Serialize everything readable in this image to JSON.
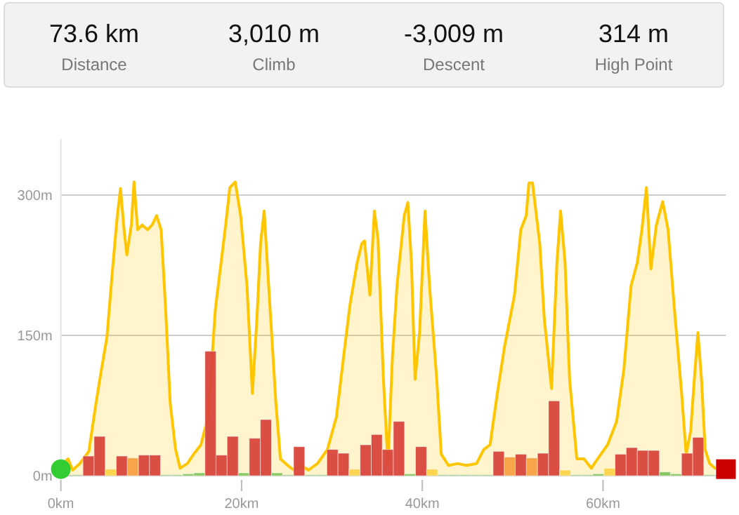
{
  "chart_data": [
    {
      "type": "other",
      "annotations": [
        "73.6 km",
        "Distance",
        "3,010 m",
        "Climb",
        "-3,009 m",
        "Descent",
        "314 m",
        "High Point"
      ]
    },
    {
      "type": "area",
      "xlim": [
        0,
        73.6
      ],
      "ylim": [
        0,
        360
      ],
      "xticks": [
        {
          "value": 0,
          "label": "0km"
        },
        {
          "value": 20,
          "label": "20km"
        },
        {
          "value": 40,
          "label": "40km"
        },
        {
          "value": 60,
          "label": "60km"
        }
      ],
      "yticks": [
        {
          "value": 0,
          "label": "0m"
        },
        {
          "value": 150,
          "label": "150m"
        },
        {
          "value": 300,
          "label": "300m"
        }
      ],
      "grid": "y",
      "series": [
        {
          "type": "area",
          "color": "#ffc600",
          "x": [
            0,
            0.8,
            1.3,
            2.1,
            3.1,
            3.9,
            4.4,
            5.1,
            5.7,
            6.2,
            6.6,
            7.0,
            7.3,
            7.8,
            8.1,
            8.5,
            9.0,
            9.6,
            10.1,
            10.6,
            11.1,
            11.6,
            12.1,
            12.7,
            13.2,
            14.0,
            14.7,
            15.5,
            16.3,
            17.1,
            17.8,
            18.3,
            18.7,
            19.3,
            19.9,
            20.6,
            21.2,
            21.7,
            22.1,
            22.5,
            23.0,
            23.8,
            24.3,
            25.1,
            25.8,
            26.6,
            27.4,
            28.4,
            29.5,
            30.5,
            31.3,
            32.0,
            32.8,
            33.3,
            33.6,
            34.2,
            34.7,
            35.1,
            35.7,
            36.2,
            36.7,
            37.2,
            38.0,
            38.4,
            38.8,
            39.2,
            39.7,
            40.3,
            40.8,
            41.6,
            42.1,
            42.9,
            43.9,
            44.9,
            46.0,
            46.8,
            47.5,
            48.3,
            49.1,
            50.2,
            50.9,
            51.5,
            51.8,
            52.2,
            53.0,
            53.5,
            54.3,
            54.9,
            55.3,
            55.8,
            56.3,
            57.1,
            57.9,
            58.7,
            59.4,
            60.5,
            61.5,
            62.3,
            63.1,
            63.8,
            64.3,
            64.8,
            65.3,
            65.9,
            66.6,
            67.2,
            67.9,
            68.7,
            69.2,
            69.7,
            70.1,
            70.5,
            70.9,
            71.3,
            71.8,
            72.4
          ],
          "values": [
            10,
            18,
            6,
            13,
            26,
            78,
            108,
            148,
            218,
            273,
            307,
            263,
            236,
            268,
            314,
            263,
            268,
            263,
            268,
            278,
            263,
            178,
            78,
            28,
            8,
            13,
            23,
            33,
            63,
            178,
            233,
            273,
            308,
            314,
            278,
            203,
            88,
            168,
            248,
            283,
            203,
            78,
            18,
            11,
            6,
            11,
            6,
            13,
            28,
            63,
            128,
            183,
            228,
            248,
            251,
            193,
            283,
            253,
            103,
            13,
            128,
            203,
            278,
            292,
            228,
            103,
            153,
            283,
            203,
            103,
            23,
            11,
            13,
            11,
            13,
            28,
            33,
            88,
            138,
            193,
            263,
            278,
            313,
            313,
            248,
            168,
            93,
            228,
            283,
            228,
            103,
            18,
            18,
            8,
            18,
            33,
            58,
            113,
            203,
            228,
            263,
            308,
            221,
            268,
            293,
            263,
            178,
            88,
            23,
            48,
            103,
            153,
            103,
            28,
            13,
            8
          ]
        },
        {
          "type": "histogram",
          "bins": [
            1.23,
            2.45,
            3.68,
            4.91,
            6.13,
            7.36,
            8.59,
            9.81,
            11.04,
            12.27,
            13.49,
            14.72,
            15.95,
            17.17,
            18.4,
            19.63,
            20.85,
            22.08,
            23.31,
            24.53,
            25.76,
            26.99,
            28.21,
            29.44,
            30.67,
            31.89,
            33.12,
            34.35,
            35.57,
            36.8,
            38.03,
            39.25,
            40.48,
            41.71,
            42.93,
            44.16,
            45.39,
            46.61,
            47.84,
            49.07,
            50.29,
            51.52,
            52.75,
            53.97,
            55.2,
            56.43,
            57.65,
            58.88,
            60.11,
            61.33,
            62.56,
            63.79,
            65.01,
            66.24,
            67.47,
            68.69,
            69.92,
            71.15,
            72.37
          ],
          "values": [
            1,
            21,
            42,
            7,
            21,
            19,
            22,
            22,
            1,
            1,
            2,
            3,
            133,
            22,
            42,
            3,
            40,
            60,
            3,
            1,
            31,
            1,
            1,
            28,
            24,
            7,
            33,
            44,
            28,
            58,
            2,
            31,
            7,
            1,
            1,
            1,
            1,
            1,
            26,
            20,
            23,
            19,
            24,
            80,
            6,
            1,
            1,
            2,
            8,
            23,
            30,
            27,
            27,
            4,
            2,
            24,
            41,
            1
          ],
          "colors": [
            "#80c45a",
            "#d9453b",
            "#d9453b",
            "#fdd34a",
            "#d9453b",
            "#f7a040",
            "#d9453b",
            "#d9453b",
            "#80c45a",
            "#80c45a",
            "#80c45a",
            "#80c45a",
            "#d9453b",
            "#d9453b",
            "#d9453b",
            "#80c45a",
            "#d9453b",
            "#d9453b",
            "#80c45a",
            "#80c45a",
            "#d9453b",
            "#80c45a",
            "#80c45a",
            "#d9453b",
            "#d9453b",
            "#fdd34a",
            "#d9453b",
            "#d9453b",
            "#d9453b",
            "#d9453b",
            "#80c45a",
            "#d9453b",
            "#fdd34a",
            "#80c45a",
            "#80c45a",
            "#80c45a",
            "#80c45a",
            "#80c45a",
            "#d9453b",
            "#f7a040",
            "#d9453b",
            "#f7a040",
            "#d9453b",
            "#d9453b",
            "#fdd34a",
            "#80c45a",
            "#80c45a",
            "#80c45a",
            "#fdd34a",
            "#d9453b",
            "#d9453b",
            "#d9453b",
            "#d9453b",
            "#80c45a",
            "#80c45a",
            "#d9453b",
            "#d9453b",
            "#80c45a"
          ]
        },
        {
          "type": "scatter",
          "marker": "circle",
          "color": "#33cc33",
          "x": [
            0
          ],
          "values": [
            7
          ]
        },
        {
          "type": "scatter",
          "marker": "square",
          "color": "#cc0000",
          "x": [
            73.6
          ],
          "values": [
            7
          ]
        }
      ]
    }
  ]
}
